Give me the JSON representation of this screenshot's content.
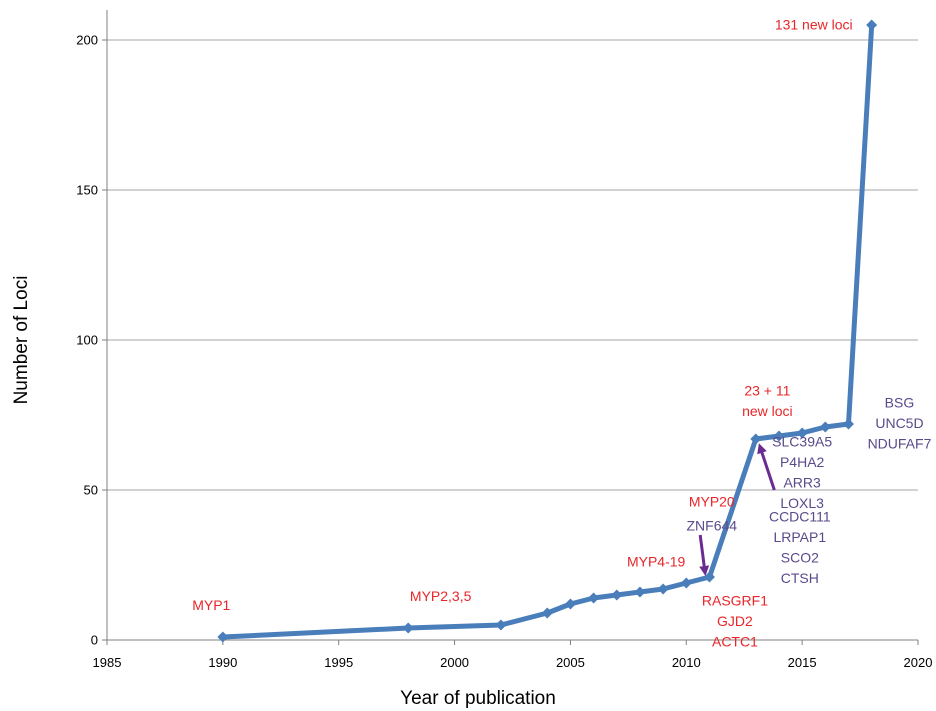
{
  "chart_data": {
    "type": "line",
    "title": "",
    "xlabel": "Year of publication",
    "ylabel": "Number of Loci",
    "xlim": [
      1985,
      2020
    ],
    "ylim": [
      0,
      210
    ],
    "xticks": [
      1985,
      1990,
      1995,
      2000,
      2005,
      2010,
      2015,
      2020
    ],
    "yticks": [
      0,
      50,
      100,
      150,
      200
    ],
    "grid": "horizontal",
    "legend": "none",
    "line_color": "#4a7ebb",
    "series": [
      {
        "x": [
          1990,
          1998,
          2002,
          2004,
          2005,
          2006,
          2007,
          2008,
          2009,
          2010,
          2011,
          2013,
          2014,
          2015,
          2016,
          2017,
          2018
        ],
        "values": [
          1,
          4,
          5,
          9,
          12,
          14,
          15,
          16,
          17,
          19,
          21,
          67,
          68,
          69,
          71,
          72,
          205
        ]
      }
    ],
    "annotations": [
      {
        "id": "myp1",
        "x": 1989.5,
        "y": 10,
        "lines": [
          "MYP1"
        ],
        "color": "#e8262a"
      },
      {
        "id": "myp235",
        "x": 1999.4,
        "y": 13,
        "lines": [
          "MYP2,3,5"
        ],
        "color": "#e8262a"
      },
      {
        "id": "myp419",
        "x": 2008.7,
        "y": 24.5,
        "lines": [
          "MYP4-19"
        ],
        "color": "#e8262a"
      },
      {
        "id": "myp20",
        "x": 2011.1,
        "y": 44.5,
        "lines": [
          "MYP20"
        ],
        "color": "#e8262a"
      },
      {
        "id": "znf644",
        "x": 2011.1,
        "y": 36.5,
        "lines": [
          "ZNF644"
        ],
        "color": "#5b4a8b"
      },
      {
        "id": "rasgrf1",
        "x": 2012.1,
        "y": 11.5,
        "lines": [
          "RASGRF1",
          "GJD2",
          "ACTC1"
        ],
        "color": "#e8262a"
      },
      {
        "id": "loci2311",
        "x": 2013.5,
        "y": 81.5,
        "lines": [
          "23 + 11",
          "new loci"
        ],
        "color": "#e8262a"
      },
      {
        "id": "slc39a5",
        "x": 2015.0,
        "y": 64.5,
        "lines": [
          "SLC39A5",
          "P4HA2",
          "ARR3",
          "LOXL3"
        ],
        "color": "#5b4a8b"
      },
      {
        "id": "ccdc111",
        "x": 2014.9,
        "y": 39.5,
        "lines": [
          "CCDC111",
          "LRPAP1",
          "SCO2",
          "CTSH"
        ],
        "color": "#5b4a8b"
      },
      {
        "id": "bsg",
        "x": 2019.2,
        "y": 77.5,
        "lines": [
          "BSG",
          "UNC5D",
          "NDUFAF7"
        ],
        "color": "#5b4a8b"
      },
      {
        "id": "loci131",
        "x": 2015.5,
        "y": 203.5,
        "lines": [
          "131 new loci"
        ],
        "color": "#e8262a"
      }
    ],
    "arrows": [
      {
        "id": "arrow-myp20",
        "from": [
          2010.6,
          35
        ],
        "to": [
          2010.8,
          23
        ],
        "color": "#6a2c91"
      },
      {
        "id": "arrow-ccdc111",
        "from": [
          2013.8,
          50
        ],
        "to": [
          2013.2,
          64
        ],
        "color": "#6a2c91"
      }
    ]
  }
}
